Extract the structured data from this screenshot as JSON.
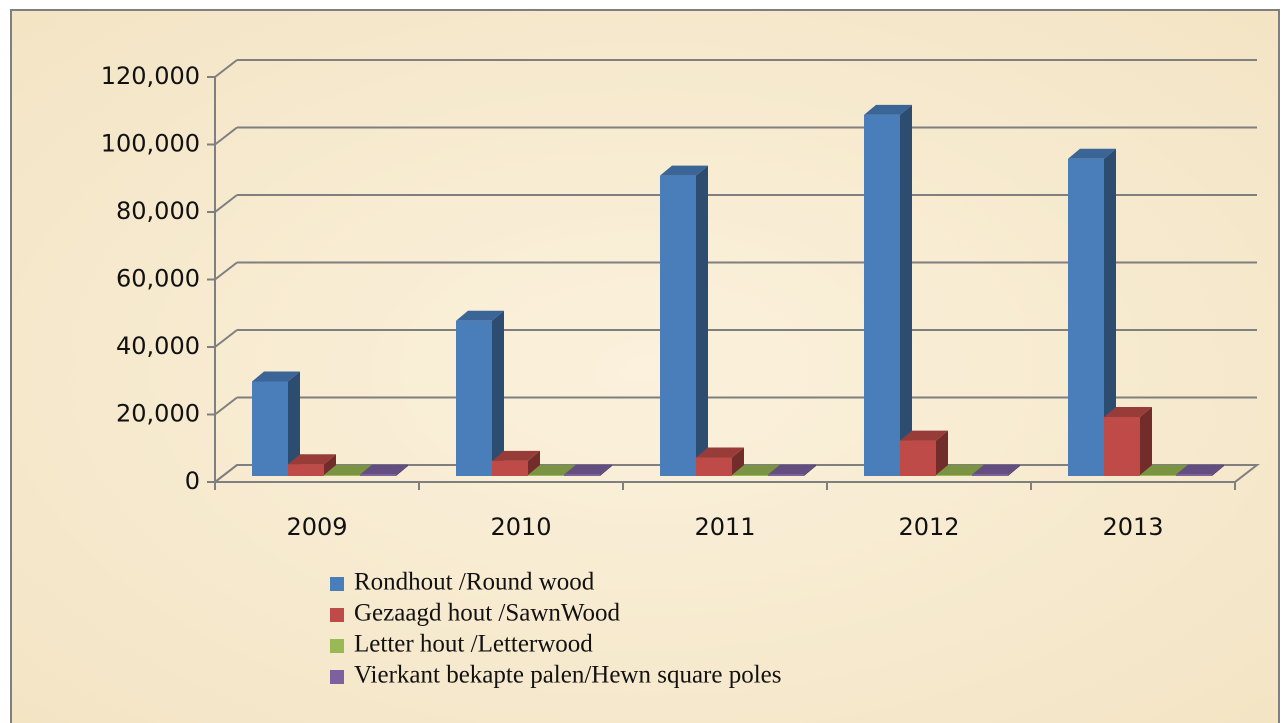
{
  "chart_data": {
    "type": "bar3d",
    "categories": [
      "2009",
      "2010",
      "2011",
      "2012",
      "2013"
    ],
    "series": [
      {
        "name": "Rondhout /Round wood",
        "color": "#4a7ebb",
        "values": [
          28000,
          46000,
          89000,
          107000,
          94000
        ]
      },
      {
        "name": "Gezaagd hout /SawnWood",
        "color": "#be4b48",
        "values": [
          3500,
          4500,
          5500,
          10500,
          17500
        ]
      },
      {
        "name": "Letter hout /Letterwood",
        "color": "#98b954",
        "values": [
          300,
          300,
          300,
          300,
          300
        ]
      },
      {
        "name": "Vierkant bekapte palen/Hewn square poles",
        "color": "#7d60a0",
        "values": [
          400,
          400,
          400,
          400,
          400
        ]
      }
    ],
    "ylim": [
      0,
      120000
    ],
    "yticks": [
      0,
      {
        "value": 20000,
        "label": "20,000"
      },
      {
        "value": 40000,
        "label": "40,000"
      },
      {
        "value": 60000,
        "label": "60,000"
      },
      {
        "value": 80000,
        "label": "80,000"
      },
      {
        "value": 100000,
        "label": "100,000"
      },
      {
        "value": 120000,
        "label": "120,000"
      }
    ],
    "grid": true
  }
}
